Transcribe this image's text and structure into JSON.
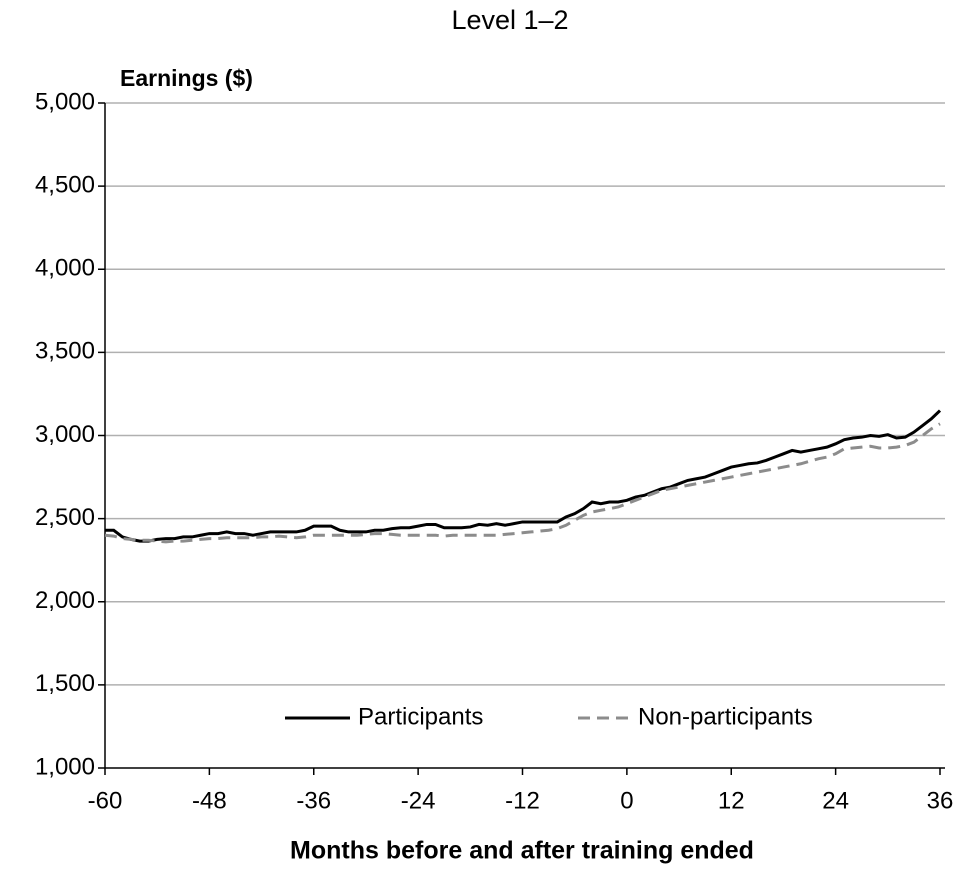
{
  "chart_data": {
    "type": "line",
    "title": "Level 1–2",
    "ylabel": "Earnings ($)",
    "xlabel": "Months before and after training ended",
    "x": [
      -60,
      -59,
      -58,
      -57,
      -56,
      -55,
      -54,
      -53,
      -52,
      -51,
      -50,
      -49,
      -48,
      -47,
      -46,
      -45,
      -44,
      -43,
      -42,
      -41,
      -40,
      -39,
      -38,
      -37,
      -36,
      -35,
      -34,
      -33,
      -32,
      -31,
      -30,
      -29,
      -28,
      -27,
      -26,
      -25,
      -24,
      -23,
      -22,
      -21,
      -20,
      -19,
      -18,
      -17,
      -16,
      -15,
      -14,
      -13,
      -12,
      -11,
      -10,
      -9,
      -8,
      -7,
      -6,
      -5,
      -4,
      -3,
      -2,
      -1,
      0,
      1,
      2,
      3,
      4,
      5,
      6,
      7,
      8,
      9,
      10,
      11,
      12,
      13,
      14,
      15,
      16,
      17,
      18,
      19,
      20,
      21,
      22,
      23,
      24,
      25,
      26,
      27,
      28,
      29,
      30,
      31,
      32,
      33,
      34,
      35,
      36
    ],
    "series": [
      {
        "name": "Participants",
        "color": "#000000",
        "dash": false,
        "values": [
          2430,
          2430,
          2390,
          2375,
          2365,
          2365,
          2375,
          2380,
          2380,
          2390,
          2390,
          2400,
          2410,
          2410,
          2420,
          2410,
          2410,
          2400,
          2410,
          2420,
          2420,
          2420,
          2420,
          2430,
          2455,
          2455,
          2455,
          2430,
          2420,
          2420,
          2420,
          2430,
          2430,
          2440,
          2445,
          2445,
          2455,
          2465,
          2465,
          2445,
          2445,
          2445,
          2450,
          2465,
          2460,
          2470,
          2460,
          2470,
          2480,
          2480,
          2480,
          2480,
          2480,
          2510,
          2530,
          2560,
          2600,
          2590,
          2600,
          2600,
          2610,
          2630,
          2640,
          2660,
          2680,
          2690,
          2710,
          2730,
          2740,
          2750,
          2770,
          2790,
          2810,
          2820,
          2830,
          2835,
          2850,
          2870,
          2890,
          2910,
          2900,
          2910,
          2920,
          2930,
          2950,
          2975,
          2985,
          2990,
          3000,
          2995,
          3005,
          2985,
          2990,
          3020,
          3060,
          3100,
          3150
        ]
      },
      {
        "name": "Non-participants",
        "color": "#8c8c8c",
        "dash": true,
        "values": [
          2400,
          2395,
          2380,
          2375,
          2370,
          2370,
          2365,
          2360,
          2365,
          2365,
          2370,
          2375,
          2380,
          2380,
          2385,
          2385,
          2385,
          2385,
          2390,
          2390,
          2395,
          2390,
          2385,
          2390,
          2400,
          2400,
          2400,
          2400,
          2400,
          2400,
          2405,
          2410,
          2410,
          2405,
          2400,
          2400,
          2400,
          2400,
          2400,
          2395,
          2400,
          2400,
          2400,
          2400,
          2400,
          2400,
          2405,
          2410,
          2415,
          2420,
          2425,
          2430,
          2440,
          2460,
          2490,
          2520,
          2540,
          2550,
          2560,
          2570,
          2590,
          2610,
          2630,
          2650,
          2670,
          2680,
          2690,
          2700,
          2710,
          2720,
          2730,
          2740,
          2750,
          2760,
          2770,
          2780,
          2790,
          2800,
          2810,
          2820,
          2830,
          2845,
          2860,
          2870,
          2890,
          2920,
          2925,
          2930,
          2935,
          2925,
          2925,
          2930,
          2940,
          2960,
          3000,
          3040,
          3070
        ]
      }
    ],
    "xlim": [
      -60,
      36
    ],
    "xticks": [
      -60,
      -48,
      -36,
      -24,
      -12,
      0,
      12,
      24,
      36
    ],
    "ylim": [
      1000,
      5000
    ],
    "yticks": [
      {
        "value": 1000,
        "label": "1,000"
      },
      {
        "value": 1500,
        "label": "1,500"
      },
      {
        "value": 2000,
        "label": "2,000"
      },
      {
        "value": 2500,
        "label": "2,500"
      },
      {
        "value": 3000,
        "label": "3,000"
      },
      {
        "value": 3500,
        "label": "3,500"
      },
      {
        "value": 4000,
        "label": "4,000"
      },
      {
        "value": 4500,
        "label": "4,500"
      },
      {
        "value": 5000,
        "label": "5,000"
      }
    ],
    "grid": true,
    "legend": "bottom"
  }
}
